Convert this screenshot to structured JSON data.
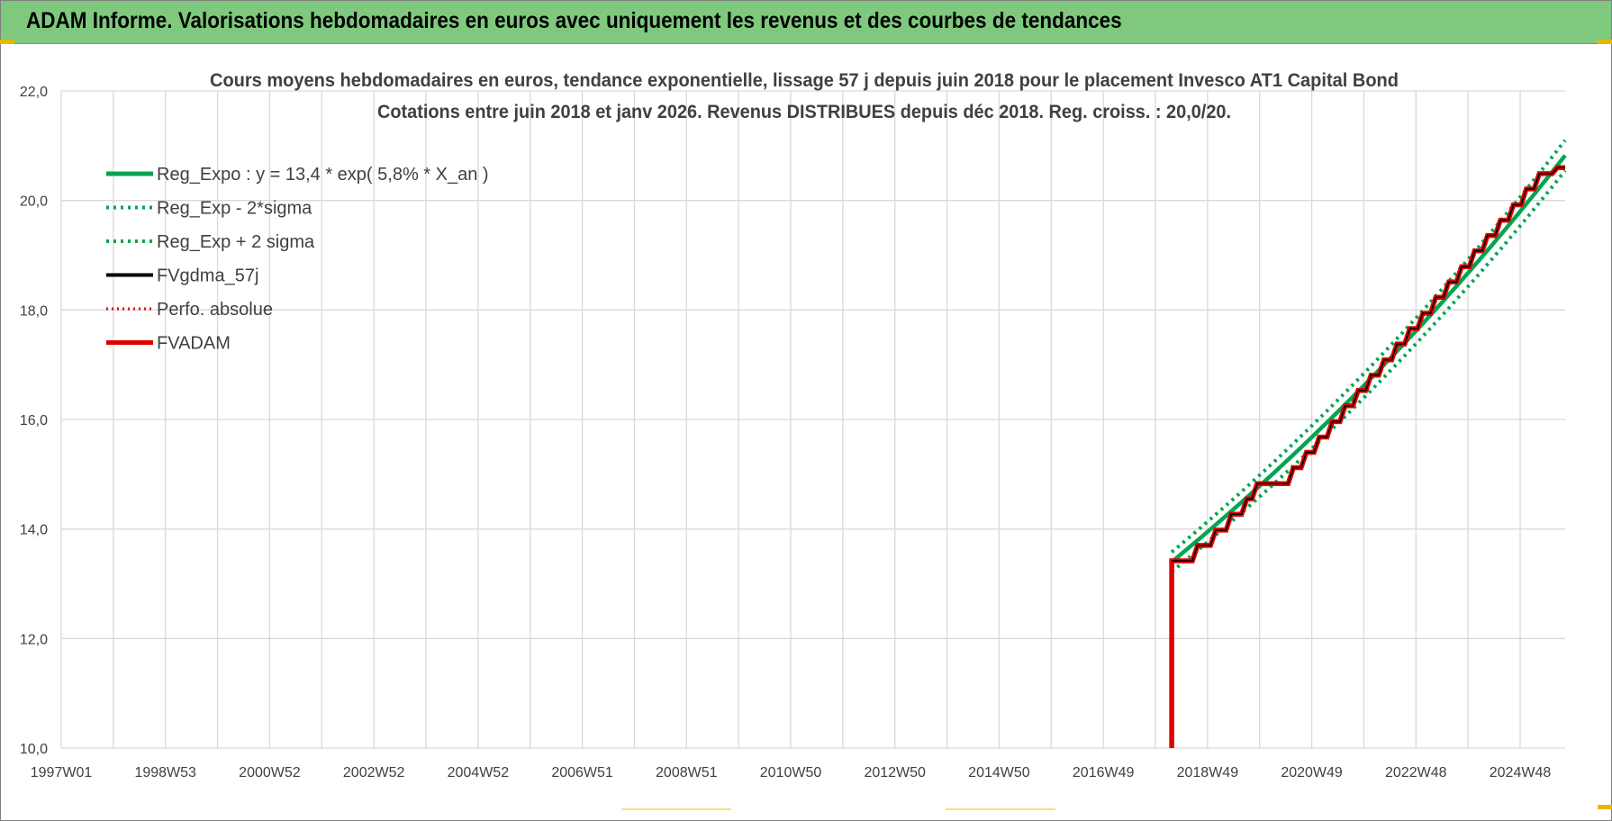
{
  "banner": {
    "title": "ADAM Informe. Valorisations hebdomadaires en euros avec uniquement les revenus et des courbes de tendances"
  },
  "colors": {
    "banner_bg": "#7fc97f",
    "reg_green": "#00a650",
    "fv_black": "#000000",
    "fvadam_red": "#e00000",
    "grid": "#d9d9d9",
    "text": "#404040"
  },
  "chart_data": {
    "type": "line",
    "title": "Cours moyens hebdomadaires en euros, tendance exponentielle, lissage 57 j depuis juin 2018 pour le placement Invesco AT1 Capital Bond",
    "subtitle": "Cotations entre juin 2018 et janv 2026.  Revenus DISTRIBUES depuis déc 2018. Reg. croiss. : 20,0/20.",
    "xlabel": "",
    "ylabel": "",
    "ylim": [
      10,
      22
    ],
    "y_ticks": [
      "10,0",
      "12,0",
      "14,0",
      "16,0",
      "18,0",
      "20,0",
      "22,0"
    ],
    "x_ticks": [
      "1997W01",
      "1998W53",
      "2000W52",
      "2002W52",
      "2004W52",
      "2006W51",
      "2008W51",
      "2010W50",
      "2012W50",
      "2014W50",
      "2016W49",
      "2018W49",
      "2020W49",
      "2022W48",
      "2024W48"
    ],
    "x_range_years": [
      1997.0,
      2026.05
    ],
    "grid": true,
    "legend_position": "top-left",
    "regression": {
      "a": 13.4,
      "growth": 0.058,
      "start_year": 2018.45,
      "end_year": 2026.05,
      "band_factor": 0.0133
    },
    "series": [
      {
        "name": "Reg_Expo : y = 13,4 * exp( 5,8% *  X_an )",
        "style": "solid-green"
      },
      {
        "name": "Reg_Exp - 2*sigma",
        "style": "dotted-green"
      },
      {
        "name": "Reg_Exp + 2 sigma",
        "style": "dotted-green"
      },
      {
        "name": "FVgdma_57j",
        "style": "solid-black"
      },
      {
        "name": "Perfo. absolue",
        "style": "dotted-red"
      },
      {
        "name": "FVADAM",
        "style": "solid-red"
      }
    ],
    "fvadam_points": [
      [
        2018.45,
        10.0
      ],
      [
        2018.45,
        13.42
      ],
      [
        2018.85,
        13.42
      ],
      [
        2018.95,
        13.7
      ],
      [
        2019.2,
        13.7
      ],
      [
        2019.3,
        13.98
      ],
      [
        2019.5,
        13.98
      ],
      [
        2019.6,
        14.27
      ],
      [
        2019.8,
        14.27
      ],
      [
        2019.9,
        14.55
      ],
      [
        2020.0,
        14.55
      ],
      [
        2020.1,
        14.83
      ],
      [
        2020.7,
        14.83
      ],
      [
        2020.8,
        15.12
      ],
      [
        2020.95,
        15.12
      ],
      [
        2021.05,
        15.4
      ],
      [
        2021.2,
        15.4
      ],
      [
        2021.3,
        15.68
      ],
      [
        2021.45,
        15.68
      ],
      [
        2021.55,
        15.96
      ],
      [
        2021.7,
        15.96
      ],
      [
        2021.8,
        16.25
      ],
      [
        2021.95,
        16.25
      ],
      [
        2022.05,
        16.53
      ],
      [
        2022.2,
        16.53
      ],
      [
        2022.3,
        16.81
      ],
      [
        2022.45,
        16.81
      ],
      [
        2022.55,
        17.09
      ],
      [
        2022.7,
        17.09
      ],
      [
        2022.8,
        17.38
      ],
      [
        2022.95,
        17.38
      ],
      [
        2023.05,
        17.66
      ],
      [
        2023.2,
        17.66
      ],
      [
        2023.3,
        17.94
      ],
      [
        2023.45,
        17.94
      ],
      [
        2023.55,
        18.23
      ],
      [
        2023.7,
        18.23
      ],
      [
        2023.8,
        18.51
      ],
      [
        2023.95,
        18.51
      ],
      [
        2024.05,
        18.79
      ],
      [
        2024.2,
        18.79
      ],
      [
        2024.3,
        19.08
      ],
      [
        2024.45,
        19.08
      ],
      [
        2024.55,
        19.36
      ],
      [
        2024.7,
        19.36
      ],
      [
        2024.8,
        19.64
      ],
      [
        2024.95,
        19.64
      ],
      [
        2025.05,
        19.92
      ],
      [
        2025.2,
        19.92
      ],
      [
        2025.3,
        20.21
      ],
      [
        2025.45,
        20.21
      ],
      [
        2025.55,
        20.49
      ],
      [
        2025.8,
        20.49
      ],
      [
        2025.9,
        20.6
      ],
      [
        2026.05,
        20.6
      ]
    ]
  }
}
